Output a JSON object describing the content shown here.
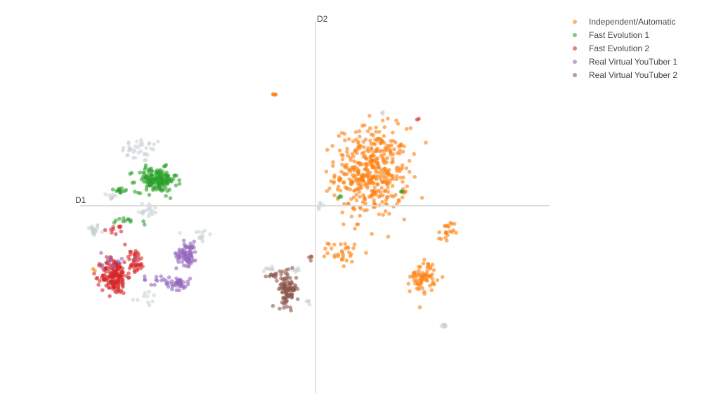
{
  "chart_data": {
    "type": "scatter",
    "title": "",
    "xlabel": "D1",
    "ylabel": "D2",
    "xlim": [
      -1.0,
      1.0
    ],
    "ylim": [
      -1.0,
      1.0
    ],
    "grid": false,
    "legend_position": "top-right",
    "series": [
      {
        "name": "Independent/Automatic",
        "color": "#ff7f0e",
        "clusters": [
          {
            "center": [
              0.24,
              0.18
            ],
            "spread": [
              0.14,
              0.22
            ],
            "count": 420
          },
          {
            "center": [
              0.46,
              -0.38
            ],
            "spread": [
              0.05,
              0.08
            ],
            "count": 70
          },
          {
            "center": [
              0.12,
              -0.25
            ],
            "spread": [
              0.06,
              0.05
            ],
            "count": 30
          },
          {
            "center": [
              0.56,
              -0.15
            ],
            "spread": [
              0.03,
              0.06
            ],
            "count": 20
          },
          {
            "center": [
              -0.18,
              0.6
            ],
            "spread": [
              0.015,
              0.01
            ],
            "count": 5
          },
          {
            "center": [
              -0.95,
              -0.35
            ],
            "spread": [
              0.01,
              0.01
            ],
            "count": 2
          },
          {
            "center": [
              -0.02,
              -0.28
            ],
            "spread": [
              0.02,
              0.02
            ],
            "count": 2
          }
        ]
      },
      {
        "name": "Fast Evolution 1",
        "color": "#2ca02c",
        "clusters": [
          {
            "center": [
              -0.68,
              0.14
            ],
            "spread": [
              0.08,
              0.06
            ],
            "count": 170
          },
          {
            "center": [
              -0.84,
              0.08
            ],
            "spread": [
              0.025,
              0.015
            ],
            "count": 14
          },
          {
            "center": [
              -0.78,
              -0.08
            ],
            "spread": [
              0.07,
              0.02
            ],
            "count": 12
          },
          {
            "center": [
              0.1,
              0.05
            ],
            "spread": [
              0.01,
              0.01
            ],
            "count": 3
          },
          {
            "center": [
              0.37,
              0.08
            ],
            "spread": [
              0.01,
              0.01
            ],
            "count": 3
          }
        ]
      },
      {
        "name": "Fast Evolution 2",
        "color": "#d62728",
        "clusters": [
          {
            "center": [
              -0.86,
              -0.38
            ],
            "spread": [
              0.05,
              0.09
            ],
            "count": 170
          },
          {
            "center": [
              -0.77,
              -0.3
            ],
            "spread": [
              0.035,
              0.06
            ],
            "count": 40
          },
          {
            "center": [
              -0.84,
              -0.13
            ],
            "spread": [
              0.04,
              0.02
            ],
            "count": 10
          },
          {
            "center": [
              0.44,
              0.47
            ],
            "spread": [
              0.01,
              0.01
            ],
            "count": 2
          }
        ]
      },
      {
        "name": "Real Virtual YouTuber 1",
        "color": "#9467bd",
        "clusters": [
          {
            "center": [
              -0.55,
              -0.26
            ],
            "spread": [
              0.04,
              0.06
            ],
            "count": 80
          },
          {
            "center": [
              -0.59,
              -0.42
            ],
            "spread": [
              0.05,
              0.03
            ],
            "count": 40
          },
          {
            "center": [
              -0.68,
              -0.4
            ],
            "spread": [
              0.05,
              0.025
            ],
            "count": 12
          },
          {
            "center": [
              -0.86,
              -0.3
            ],
            "spread": [
              0.05,
              0.05
            ],
            "count": 12
          }
        ]
      },
      {
        "name": "Real Virtual YouTuber 2",
        "color": "#8c564b",
        "clusters": [
          {
            "center": [
              -0.12,
              -0.45
            ],
            "spread": [
              0.035,
              0.08
            ],
            "count": 100
          },
          {
            "center": [
              -0.18,
              -0.37
            ],
            "spread": [
              0.03,
              0.02
            ],
            "count": 12
          },
          {
            "center": [
              -0.02,
              -0.28
            ],
            "spread": [
              0.01,
              0.02
            ],
            "count": 3
          }
        ]
      },
      {
        "name": "",
        "color": "#c7cfd1",
        "show_in_legend": false,
        "clusters": [
          {
            "center": [
              -0.95,
              -0.13
            ],
            "spread": [
              0.025,
              0.03
            ],
            "count": 20
          },
          {
            "center": [
              -0.74,
              0.3
            ],
            "spread": [
              0.08,
              0.06
            ],
            "count": 35
          },
          {
            "center": [
              -0.72,
              -0.02
            ],
            "spread": [
              0.05,
              0.04
            ],
            "count": 18
          },
          {
            "center": [
              -0.73,
              -0.5
            ],
            "spread": [
              0.05,
              0.04
            ],
            "count": 10
          },
          {
            "center": [
              -0.87,
              0.05
            ],
            "spread": [
              0.02,
              0.02
            ],
            "count": 8
          },
          {
            "center": [
              -0.49,
              -0.16
            ],
            "spread": [
              0.04,
              0.05
            ],
            "count": 12
          },
          {
            "center": [
              -0.2,
              -0.34
            ],
            "spread": [
              0.03,
              0.02
            ],
            "count": 8
          },
          {
            "center": [
              0.02,
              0.0
            ],
            "spread": [
              0.01,
              0.02
            ],
            "count": 6
          },
          {
            "center": [
              0.55,
              -0.65
            ],
            "spread": [
              0.015,
              0.015
            ],
            "count": 8
          },
          {
            "center": [
              0.28,
              0.5
            ],
            "spread": [
              0.01,
              0.01
            ],
            "count": 3
          },
          {
            "center": [
              -0.08,
              -0.35
            ],
            "spread": [
              0.02,
              0.02
            ],
            "count": 6
          },
          {
            "center": [
              -0.03,
              -0.52
            ],
            "spread": [
              0.015,
              0.02
            ],
            "count": 4
          }
        ]
      }
    ]
  },
  "legend": {
    "items": [
      {
        "label": "Independent/Automatic",
        "color": "#ff7f0e"
      },
      {
        "label": "Fast Evolution 1",
        "color": "#2ca02c"
      },
      {
        "label": "Fast Evolution 2",
        "color": "#d62728"
      },
      {
        "label": "Real Virtual YouTuber 1",
        "color": "#9467bd"
      },
      {
        "label": "Real Virtual YouTuber 2",
        "color": "#8c564b"
      }
    ]
  }
}
